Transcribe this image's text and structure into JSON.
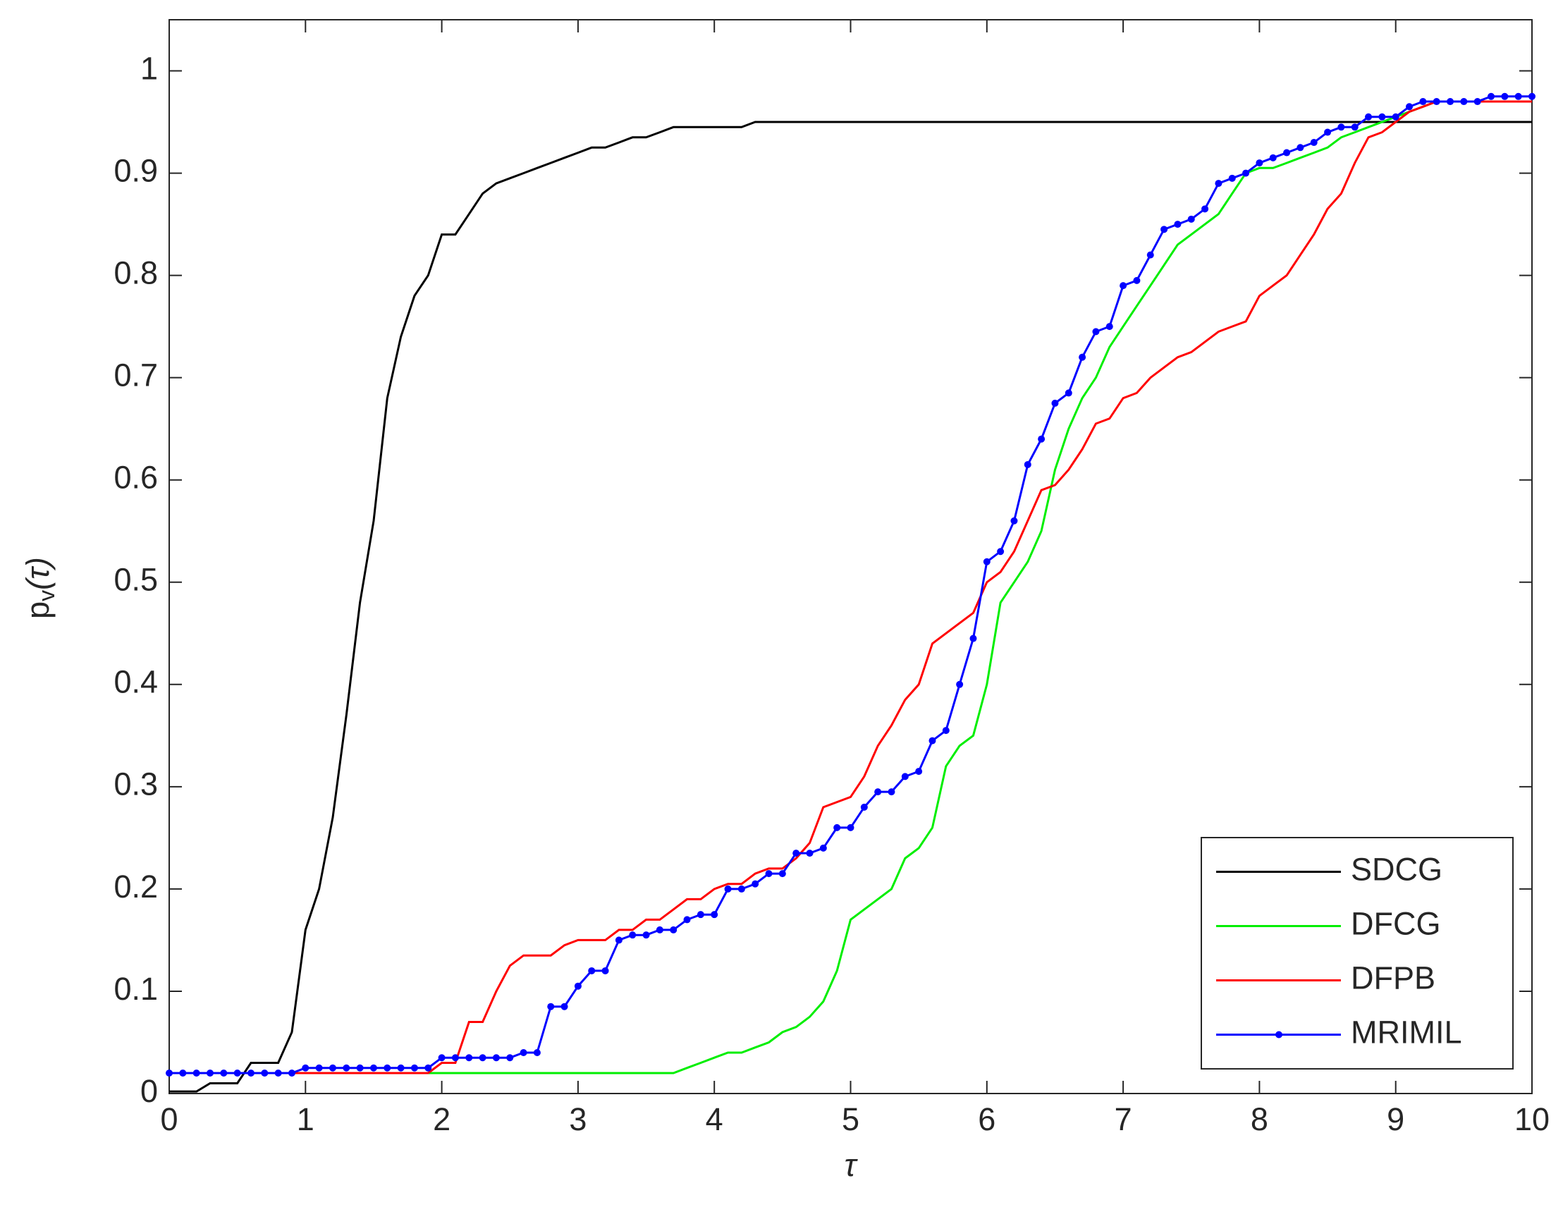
{
  "chart_data": {
    "type": "line",
    "xlabel": "τ",
    "ylabel": [
      "p",
      "v",
      "(τ)"
    ],
    "x": [
      0,
      0.1,
      0.2,
      0.3,
      0.4,
      0.5,
      0.6,
      0.7,
      0.8,
      0.9,
      1,
      1.1,
      1.2,
      1.3,
      1.4,
      1.5,
      1.6,
      1.7,
      1.8,
      1.9,
      2,
      2.1,
      2.2,
      2.3,
      2.4,
      2.5,
      2.6,
      2.7,
      2.8,
      2.9,
      3,
      3.1,
      3.2,
      3.3,
      3.4,
      3.5,
      3.6,
      3.7,
      3.8,
      3.9,
      4,
      4.1,
      4.2,
      4.3,
      4.4,
      4.5,
      4.6,
      4.7,
      4.8,
      4.9,
      5,
      5.1,
      5.2,
      5.3,
      5.4,
      5.5,
      5.6,
      5.7,
      5.8,
      5.9,
      6,
      6.1,
      6.2,
      6.3,
      6.4,
      6.5,
      6.6,
      6.7,
      6.8,
      6.9,
      7,
      7.1,
      7.2,
      7.3,
      7.4,
      7.5,
      7.6,
      7.7,
      7.8,
      7.9,
      8,
      8.1,
      8.2,
      8.3,
      8.4,
      8.5,
      8.6,
      8.7,
      8.8,
      8.9,
      9,
      9.1,
      9.2,
      9.3,
      9.4,
      9.5,
      9.6,
      9.7,
      9.8,
      9.9,
      10
    ],
    "series": [
      {
        "name": "SDCG",
        "color": "#000000",
        "marker": false,
        "values": [
          0.002,
          0.002,
          0.002,
          0.01,
          0.01,
          0.01,
          0.03,
          0.03,
          0.03,
          0.06,
          0.16,
          0.2,
          0.27,
          0.37,
          0.48,
          0.56,
          0.68,
          0.74,
          0.78,
          0.8,
          0.84,
          0.84,
          0.86,
          0.88,
          0.89,
          0.895,
          0.9,
          0.905,
          0.91,
          0.915,
          0.92,
          0.925,
          0.925,
          0.93,
          0.935,
          0.935,
          0.94,
          0.945,
          0.945,
          0.945,
          0.945,
          0.945,
          0.945,
          0.95,
          0.95,
          0.95,
          0.95,
          0.95,
          0.95,
          0.95,
          0.95,
          0.95,
          0.95,
          0.95,
          0.95,
          0.95,
          0.95,
          0.95,
          0.95,
          0.95,
          0.95,
          0.95,
          0.95,
          0.95,
          0.95,
          0.95,
          0.95,
          0.95,
          0.95,
          0.95,
          0.95,
          0.95,
          0.95,
          0.95,
          0.95,
          0.95,
          0.95,
          0.95,
          0.95,
          0.95,
          0.95,
          0.95,
          0.95,
          0.95,
          0.95,
          0.95,
          0.95,
          0.95,
          0.95,
          0.95,
          0.95,
          0.95,
          0.95,
          0.95,
          0.95,
          0.95,
          0.95,
          0.95,
          0.95,
          0.95,
          0.95
        ]
      },
      {
        "name": "DFCG",
        "color": "#00ee00",
        "marker": false,
        "values": [
          0.02,
          0.02,
          0.02,
          0.02,
          0.02,
          0.02,
          0.02,
          0.02,
          0.02,
          0.02,
          0.02,
          0.02,
          0.02,
          0.02,
          0.02,
          0.02,
          0.02,
          0.02,
          0.02,
          0.02,
          0.02,
          0.02,
          0.02,
          0.02,
          0.02,
          0.02,
          0.02,
          0.02,
          0.02,
          0.02,
          0.02,
          0.02,
          0.02,
          0.02,
          0.02,
          0.02,
          0.02,
          0.02,
          0.025,
          0.03,
          0.035,
          0.04,
          0.04,
          0.045,
          0.05,
          0.06,
          0.065,
          0.075,
          0.09,
          0.12,
          0.17,
          0.18,
          0.19,
          0.2,
          0.23,
          0.24,
          0.26,
          0.32,
          0.34,
          0.35,
          0.4,
          0.48,
          0.5,
          0.52,
          0.55,
          0.61,
          0.65,
          0.68,
          0.7,
          0.73,
          0.75,
          0.77,
          0.79,
          0.81,
          0.83,
          0.84,
          0.85,
          0.86,
          0.88,
          0.9,
          0.905,
          0.905,
          0.91,
          0.915,
          0.92,
          0.925,
          0.935,
          0.94,
          0.945,
          0.95,
          0.955,
          0.96,
          0.965,
          0.97,
          0.97,
          0.97,
          0.97,
          0.97,
          0.97,
          0.97,
          0.97
        ]
      },
      {
        "name": "DFPB",
        "color": "#ff0000",
        "marker": false,
        "values": [
          0.02,
          0.02,
          0.02,
          0.02,
          0.02,
          0.02,
          0.02,
          0.02,
          0.02,
          0.02,
          0.02,
          0.02,
          0.02,
          0.02,
          0.02,
          0.02,
          0.02,
          0.02,
          0.02,
          0.02,
          0.03,
          0.03,
          0.07,
          0.07,
          0.1,
          0.125,
          0.135,
          0.135,
          0.135,
          0.145,
          0.15,
          0.15,
          0.15,
          0.16,
          0.16,
          0.17,
          0.17,
          0.18,
          0.19,
          0.19,
          0.2,
          0.205,
          0.205,
          0.215,
          0.22,
          0.22,
          0.23,
          0.245,
          0.28,
          0.285,
          0.29,
          0.31,
          0.34,
          0.36,
          0.385,
          0.4,
          0.44,
          0.45,
          0.46,
          0.47,
          0.5,
          0.51,
          0.53,
          0.56,
          0.59,
          0.595,
          0.61,
          0.63,
          0.655,
          0.66,
          0.68,
          0.685,
          0.7,
          0.71,
          0.72,
          0.725,
          0.735,
          0.745,
          0.75,
          0.755,
          0.78,
          0.79,
          0.8,
          0.82,
          0.84,
          0.865,
          0.88,
          0.91,
          0.935,
          0.94,
          0.95,
          0.96,
          0.965,
          0.97,
          0.97,
          0.97,
          0.97,
          0.97,
          0.97,
          0.97,
          0.97
        ]
      },
      {
        "name": "MRIMIL",
        "color": "#0000ff",
        "marker": true,
        "values": [
          0.02,
          0.02,
          0.02,
          0.02,
          0.02,
          0.02,
          0.02,
          0.02,
          0.02,
          0.02,
          0.025,
          0.025,
          0.025,
          0.025,
          0.025,
          0.025,
          0.025,
          0.025,
          0.025,
          0.025,
          0.035,
          0.035,
          0.035,
          0.035,
          0.035,
          0.035,
          0.04,
          0.04,
          0.085,
          0.085,
          0.105,
          0.12,
          0.12,
          0.15,
          0.155,
          0.155,
          0.16,
          0.16,
          0.17,
          0.175,
          0.175,
          0.2,
          0.2,
          0.205,
          0.215,
          0.215,
          0.235,
          0.235,
          0.24,
          0.26,
          0.26,
          0.28,
          0.295,
          0.295,
          0.31,
          0.315,
          0.345,
          0.355,
          0.4,
          0.445,
          0.52,
          0.53,
          0.56,
          0.615,
          0.64,
          0.675,
          0.685,
          0.72,
          0.745,
          0.75,
          0.79,
          0.795,
          0.82,
          0.845,
          0.85,
          0.855,
          0.865,
          0.89,
          0.895,
          0.9,
          0.91,
          0.915,
          0.92,
          0.925,
          0.93,
          0.94,
          0.945,
          0.945,
          0.955,
          0.955,
          0.955,
          0.965,
          0.97,
          0.97,
          0.97,
          0.97,
          0.97,
          0.975,
          0.975,
          0.975,
          0.975
        ]
      }
    ],
    "xlim": [
      0,
      10
    ],
    "xticks": [
      0,
      1,
      2,
      3,
      4,
      5,
      6,
      7,
      8,
      9,
      10
    ],
    "ylim": [
      0,
      1.05
    ],
    "yticks": [
      0,
      0.1,
      0.2,
      0.3,
      0.4,
      0.5,
      0.6,
      0.7,
      0.8,
      0.9,
      1
    ],
    "grid": false,
    "legend": "lower right"
  }
}
